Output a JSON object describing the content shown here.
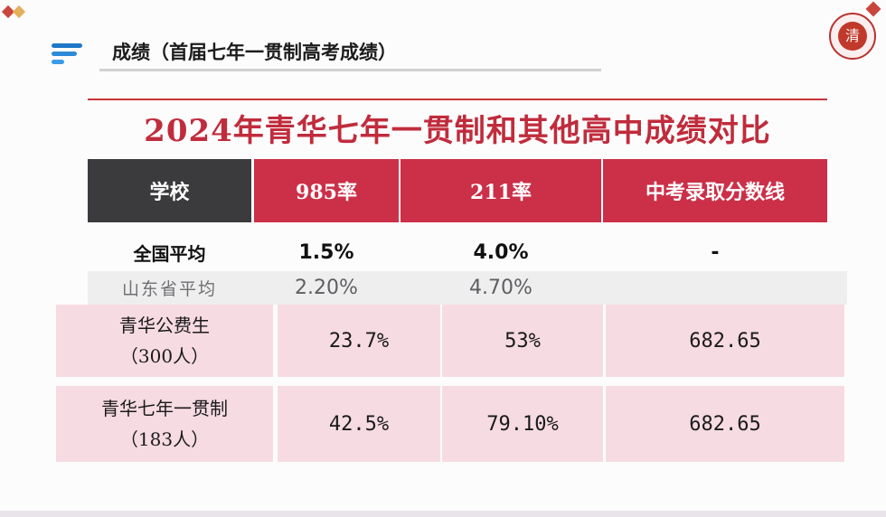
{
  "section_title": "成绩（首届七年一贯制高考成绩）",
  "logo_text": "清",
  "main_title": "2024年青华七年一贯制和其他高中成绩对比",
  "table": {
    "headers": [
      "学校",
      "985率",
      "211率",
      "中考录取分数线"
    ],
    "rows": [
      {
        "school": "全国平均",
        "r985": "1.5%",
        "r211": "4.0%",
        "score": "-"
      },
      {
        "school": "山东省平均",
        "r985": "2.20%",
        "r211": "4.70%",
        "score": ""
      },
      {
        "school_line1": "青华公费生",
        "school_line2": "（300人）",
        "r985": "23.7%",
        "r211": "53%",
        "score": "682.65"
      },
      {
        "school_line1": "青华七年一贯制",
        "school_line2": "（183人）",
        "r985": "42.5%",
        "r211": "79.10%",
        "score": "682.65"
      }
    ]
  },
  "colors": {
    "header_dark": "#3b3b3d",
    "header_red": "#cc2f48",
    "title_red": "#c02c3c",
    "row_pink": "#f6dbe3",
    "row_gray": "#eeeeef",
    "icon_blue": "#1f78c8"
  }
}
